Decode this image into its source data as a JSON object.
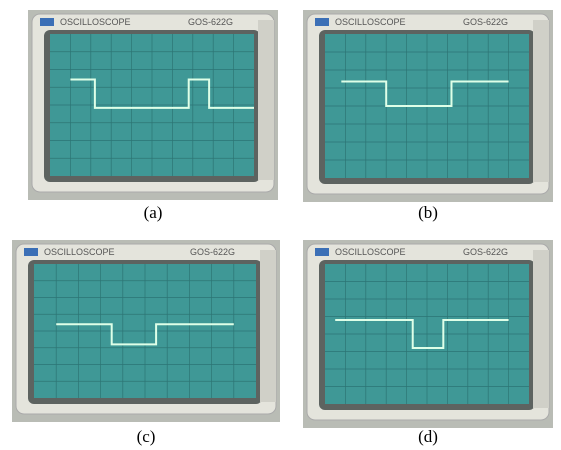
{
  "panels": [
    {
      "brand": "OSCILLOSCOPE",
      "model": "GOS-622G",
      "caption": "(a)"
    },
    {
      "brand": "OSCILLOSCOPE",
      "model": "GOS-622G",
      "caption": "(b)"
    },
    {
      "brand": "OSCILLOSCOPE",
      "model": "GOS-622G",
      "caption": "(c)"
    },
    {
      "brand": "OSCILLOSCOPE",
      "model": "GOS-622G",
      "caption": "(d)"
    }
  ]
}
